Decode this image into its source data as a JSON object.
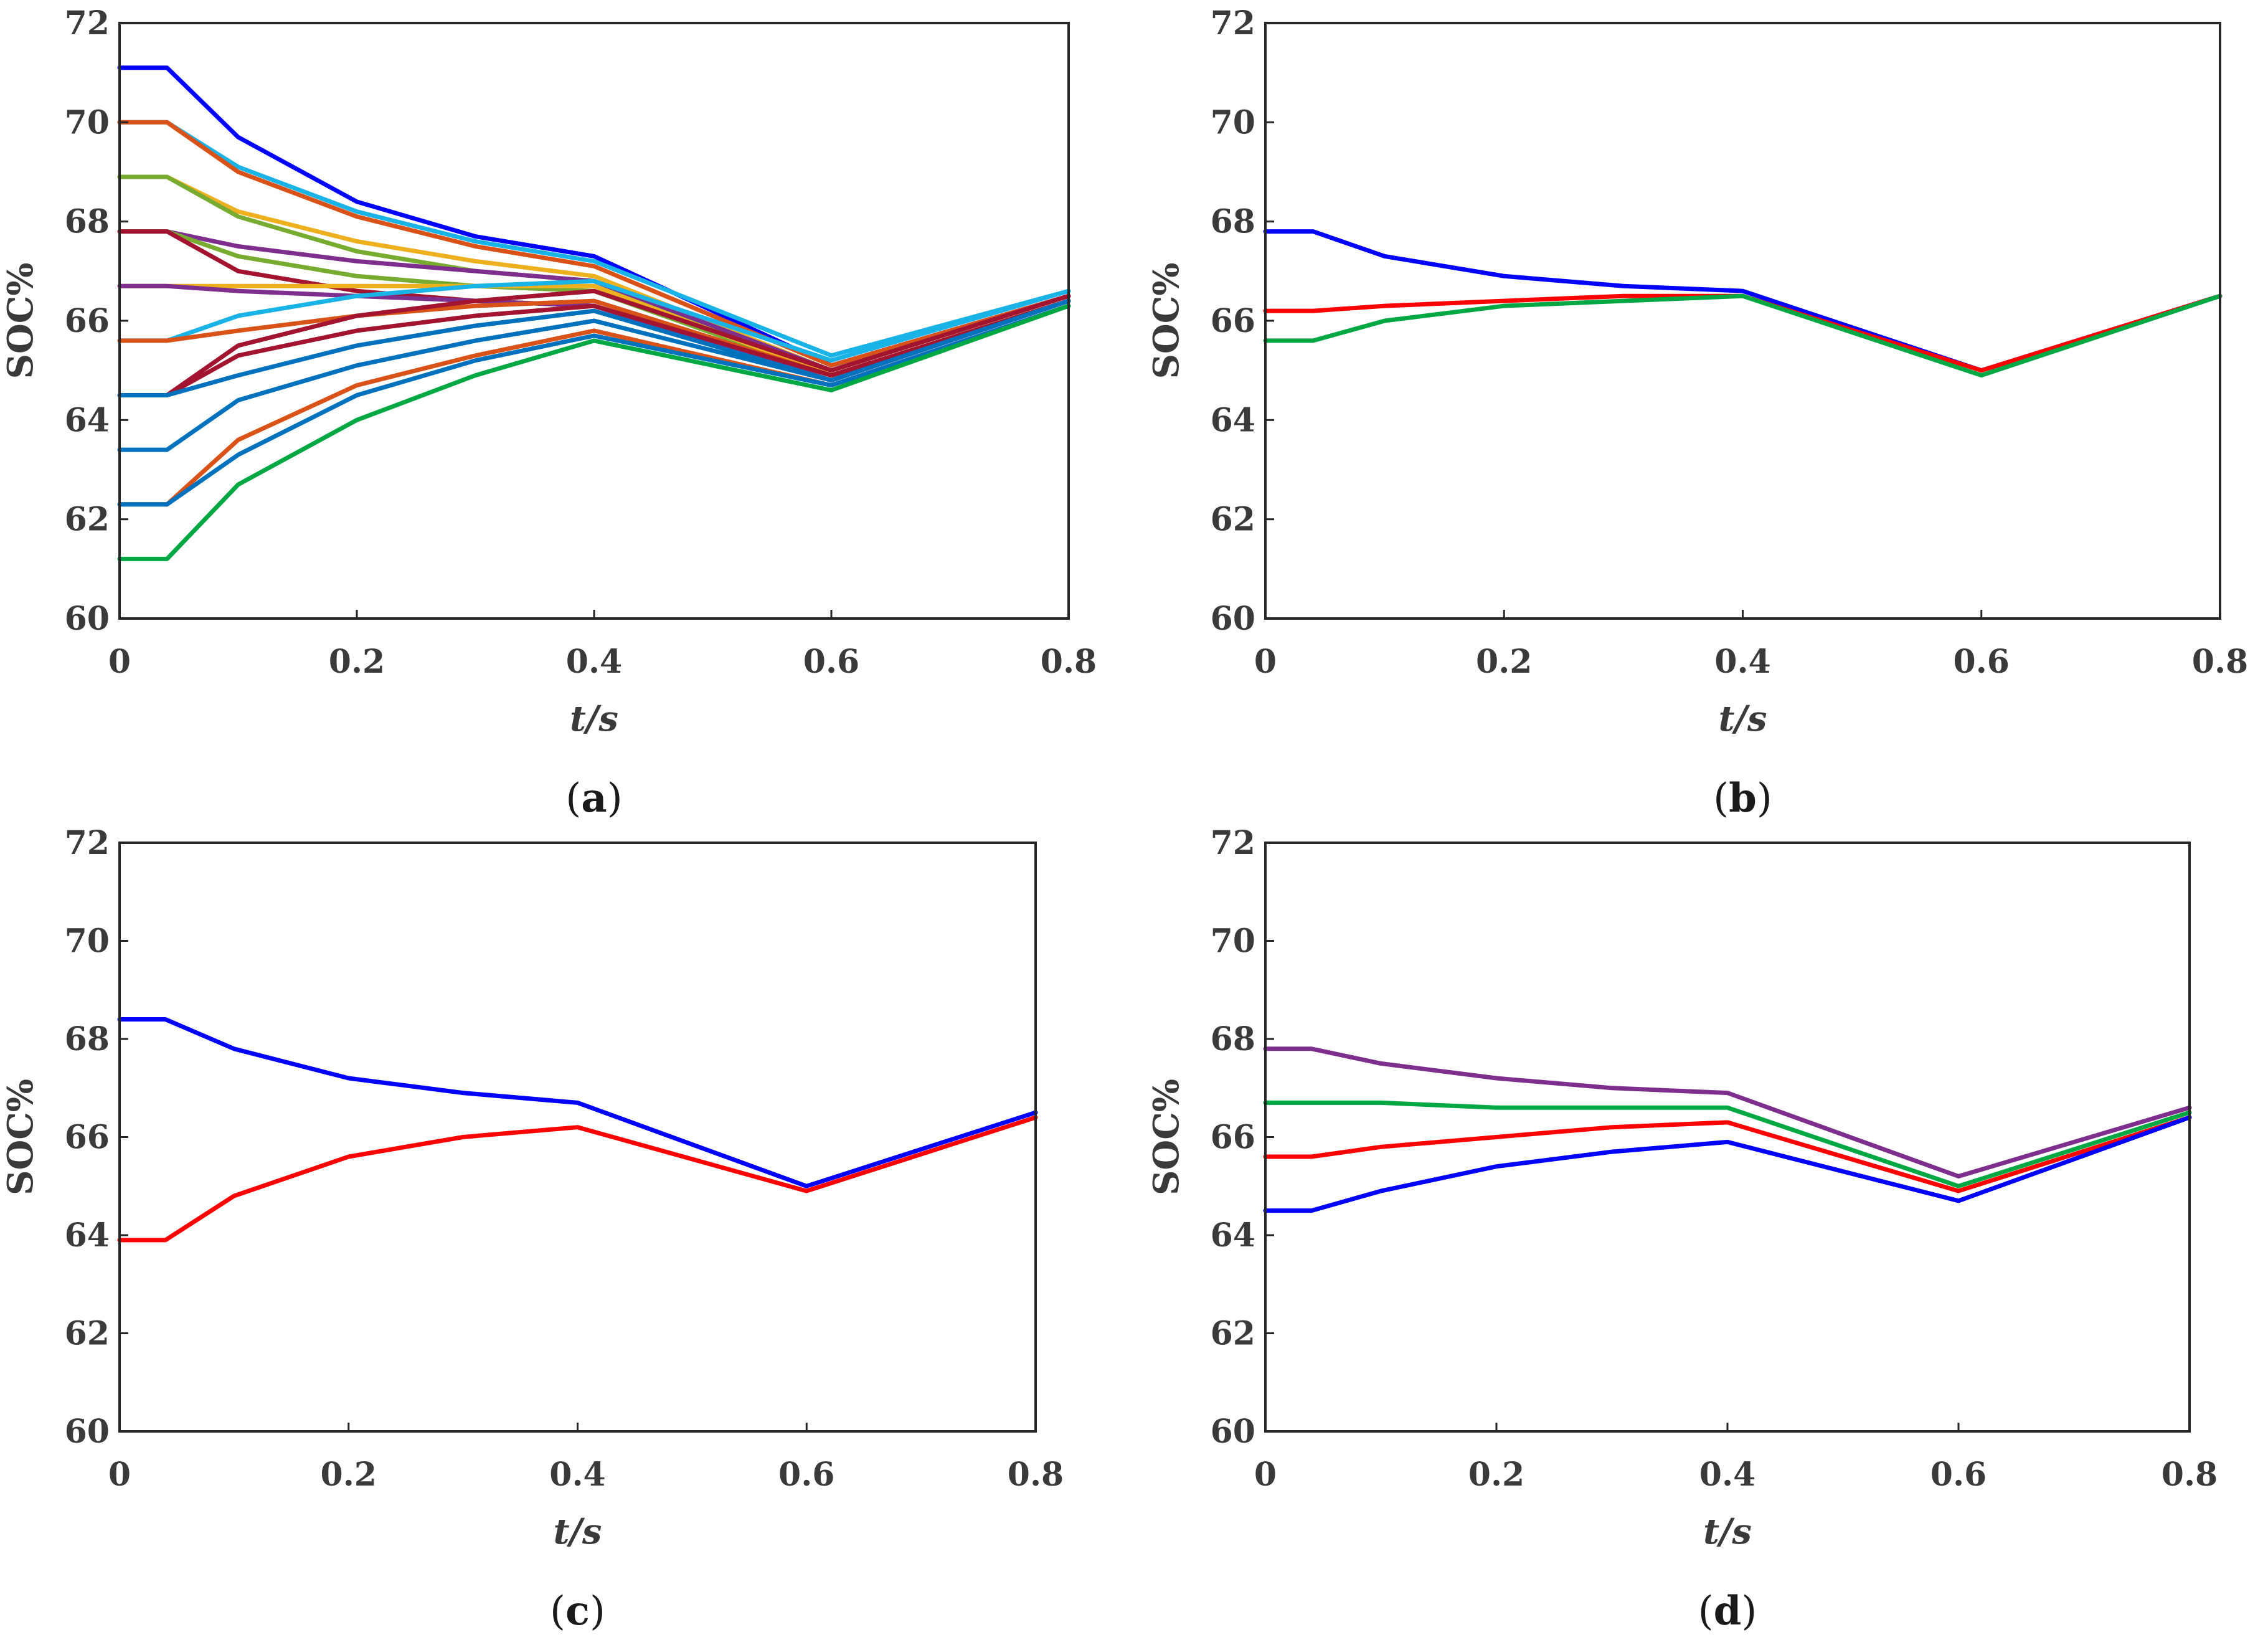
{
  "chart_data": [
    {
      "type": "line",
      "panel_label": "a",
      "xlabel": "t/s",
      "ylabel": "SOC%",
      "xlim": [
        0,
        0.8
      ],
      "ylim": [
        60,
        72
      ],
      "xticks": [
        "0",
        "0.2",
        "0.4",
        "0.6",
        "0.8"
      ],
      "yticks": [
        "60",
        "62",
        "64",
        "66",
        "68",
        "70",
        "72"
      ],
      "grid": false,
      "x": [
        0,
        0.04,
        0.1,
        0.2,
        0.3,
        0.4,
        0.6,
        0.8
      ],
      "series": [
        {
          "color": "#0000ff",
          "values": [
            71.1,
            71.1,
            69.7,
            68.4,
            67.7,
            67.3,
            65.1,
            66.5
          ]
        },
        {
          "color": "#1ab3e6",
          "values": [
            70.0,
            70.0,
            69.1,
            68.2,
            67.6,
            67.2,
            65.3,
            66.6
          ]
        },
        {
          "color": "#d95319",
          "values": [
            70.0,
            70.0,
            69.0,
            68.1,
            67.5,
            67.1,
            65.1,
            66.5
          ]
        },
        {
          "color": "#edb120",
          "values": [
            68.9,
            68.9,
            68.2,
            67.6,
            67.2,
            66.9,
            65.0,
            66.5
          ]
        },
        {
          "color": "#77ac30",
          "values": [
            68.9,
            68.9,
            68.1,
            67.4,
            67.0,
            66.8,
            64.9,
            66.4
          ]
        },
        {
          "color": "#7e2f8e",
          "values": [
            67.8,
            67.8,
            67.5,
            67.2,
            67.0,
            66.8,
            65.0,
            66.5
          ]
        },
        {
          "color": "#77ac30",
          "values": [
            67.8,
            67.8,
            67.3,
            66.9,
            66.7,
            66.6,
            64.9,
            66.4
          ]
        },
        {
          "color": "#a2142f",
          "values": [
            67.8,
            67.8,
            67.0,
            66.6,
            66.4,
            66.3,
            64.8,
            66.4
          ]
        },
        {
          "color": "#edb120",
          "values": [
            66.7,
            66.7,
            66.7,
            66.7,
            66.7,
            66.7,
            64.9,
            66.4
          ]
        },
        {
          "color": "#7e2f8e",
          "values": [
            66.7,
            66.7,
            66.6,
            66.5,
            66.4,
            66.3,
            64.8,
            66.4
          ]
        },
        {
          "color": "#1ab3e6",
          "values": [
            65.6,
            65.6,
            66.1,
            66.5,
            66.7,
            66.8,
            65.2,
            66.6
          ]
        },
        {
          "color": "#d95319",
          "values": [
            65.6,
            65.6,
            65.8,
            66.1,
            66.3,
            66.4,
            64.9,
            66.4
          ]
        },
        {
          "color": "#a2142f",
          "values": [
            64.5,
            64.5,
            65.5,
            66.1,
            66.4,
            66.6,
            65.0,
            66.5
          ]
        },
        {
          "color": "#a2142f",
          "values": [
            64.5,
            64.5,
            65.3,
            65.8,
            66.1,
            66.3,
            64.9,
            66.4
          ]
        },
        {
          "color": "#0072bd",
          "values": [
            64.5,
            64.5,
            64.9,
            65.5,
            65.9,
            66.2,
            64.8,
            66.4
          ]
        },
        {
          "color": "#0072bd",
          "values": [
            63.4,
            63.4,
            64.4,
            65.1,
            65.6,
            66.0,
            64.8,
            66.4
          ]
        },
        {
          "color": "#d95319",
          "values": [
            62.3,
            62.3,
            63.6,
            64.7,
            65.3,
            65.8,
            64.7,
            66.3
          ]
        },
        {
          "color": "#0072bd",
          "values": [
            62.3,
            62.3,
            63.3,
            64.5,
            65.2,
            65.7,
            64.7,
            66.3
          ]
        },
        {
          "color": "#00a844",
          "values": [
            61.2,
            61.2,
            62.7,
            64.0,
            64.9,
            65.6,
            64.6,
            66.3
          ]
        }
      ]
    },
    {
      "type": "line",
      "panel_label": "b",
      "xlabel": "t/s",
      "ylabel": "SOC%",
      "xlim": [
        0,
        0.8
      ],
      "ylim": [
        60,
        72
      ],
      "xticks": [
        "0",
        "0.2",
        "0.4",
        "0.6",
        "0.8"
      ],
      "yticks": [
        "60",
        "62",
        "64",
        "66",
        "68",
        "70",
        "72"
      ],
      "grid": false,
      "x": [
        0,
        0.04,
        0.1,
        0.2,
        0.3,
        0.4,
        0.6,
        0.8
      ],
      "series": [
        {
          "color": "#0000ff",
          "values": [
            67.8,
            67.8,
            67.3,
            66.9,
            66.7,
            66.6,
            65.0,
            66.5
          ]
        },
        {
          "color": "#ff0000",
          "values": [
            66.2,
            66.2,
            66.3,
            66.4,
            66.5,
            66.5,
            65.0,
            66.5
          ]
        },
        {
          "color": "#00a844",
          "values": [
            65.6,
            65.6,
            66.0,
            66.3,
            66.4,
            66.5,
            64.9,
            66.5
          ]
        }
      ]
    },
    {
      "type": "line",
      "panel_label": "c",
      "xlabel": "t/s",
      "ylabel": "SOC%",
      "xlim": [
        0,
        0.8
      ],
      "ylim": [
        60,
        72
      ],
      "xticks": [
        "0",
        "0.2",
        "0.4",
        "0.6",
        "0.8"
      ],
      "yticks": [
        "60",
        "62",
        "64",
        "66",
        "68",
        "70",
        "72"
      ],
      "grid": false,
      "x": [
        0,
        0.04,
        0.1,
        0.2,
        0.3,
        0.4,
        0.6,
        0.8
      ],
      "series": [
        {
          "color": "#0000ff",
          "values": [
            68.4,
            68.4,
            67.8,
            67.2,
            66.9,
            66.7,
            65.0,
            66.5
          ]
        },
        {
          "color": "#ff0000",
          "values": [
            63.9,
            63.9,
            64.8,
            65.6,
            66.0,
            66.2,
            64.9,
            66.4
          ]
        }
      ]
    },
    {
      "type": "line",
      "panel_label": "d",
      "xlabel": "t/s",
      "ylabel": "SOC%",
      "xlim": [
        0,
        0.8
      ],
      "ylim": [
        60,
        72
      ],
      "xticks": [
        "0",
        "0.2",
        "0.4",
        "0.6",
        "0.8"
      ],
      "yticks": [
        "60",
        "62",
        "64",
        "66",
        "68",
        "70",
        "72"
      ],
      "grid": false,
      "x": [
        0,
        0.04,
        0.1,
        0.2,
        0.3,
        0.4,
        0.6,
        0.8
      ],
      "series": [
        {
          "color": "#7e2f8e",
          "values": [
            67.8,
            67.8,
            67.5,
            67.2,
            67.0,
            66.9,
            65.2,
            66.6
          ]
        },
        {
          "color": "#00a844",
          "values": [
            66.7,
            66.7,
            66.7,
            66.6,
            66.6,
            66.6,
            65.0,
            66.5
          ]
        },
        {
          "color": "#ff0000",
          "values": [
            65.6,
            65.6,
            65.8,
            66.0,
            66.2,
            66.3,
            64.9,
            66.4
          ]
        },
        {
          "color": "#0000ff",
          "values": [
            64.5,
            64.5,
            64.9,
            65.4,
            65.7,
            65.9,
            64.7,
            66.4
          ]
        }
      ]
    }
  ]
}
